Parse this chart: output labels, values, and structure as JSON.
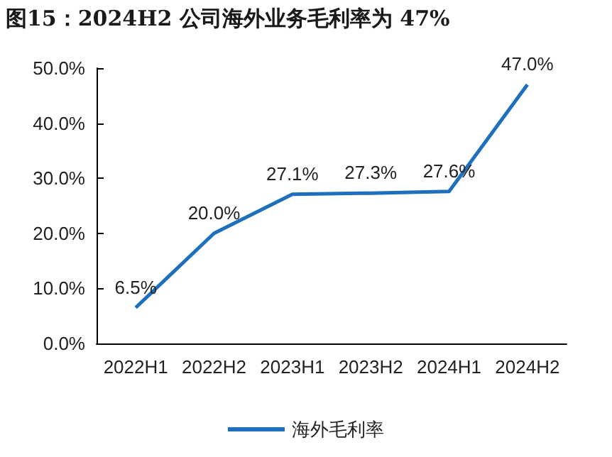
{
  "chart_data": {
    "type": "line",
    "title": "图15：2024H2 公司海外业务毛利率为 47%",
    "categories": [
      "2022H1",
      "2022H2",
      "2023H1",
      "2023H2",
      "2024H1",
      "2024H2"
    ],
    "series": [
      {
        "name": "海外毛利率",
        "color": "#1f6fbf",
        "values": [
          6.5,
          20.0,
          27.1,
          27.3,
          27.6,
          47.0
        ],
        "value_labels": [
          "6.5%",
          "20.0%",
          "27.1%",
          "27.3%",
          "27.6%",
          "47.0%"
        ]
      }
    ],
    "ylim": [
      0,
      50
    ],
    "yticks": [
      {
        "value": 0,
        "label": "0.0%"
      },
      {
        "value": 10,
        "label": "10.0%"
      },
      {
        "value": 20,
        "label": "20.0%"
      },
      {
        "value": 30,
        "label": "30.0%"
      },
      {
        "value": 40,
        "label": "40.0%"
      },
      {
        "value": 50,
        "label": "50.0%"
      }
    ],
    "grid": false,
    "legend": "bottom",
    "marker": "none",
    "line_style": "solid"
  }
}
